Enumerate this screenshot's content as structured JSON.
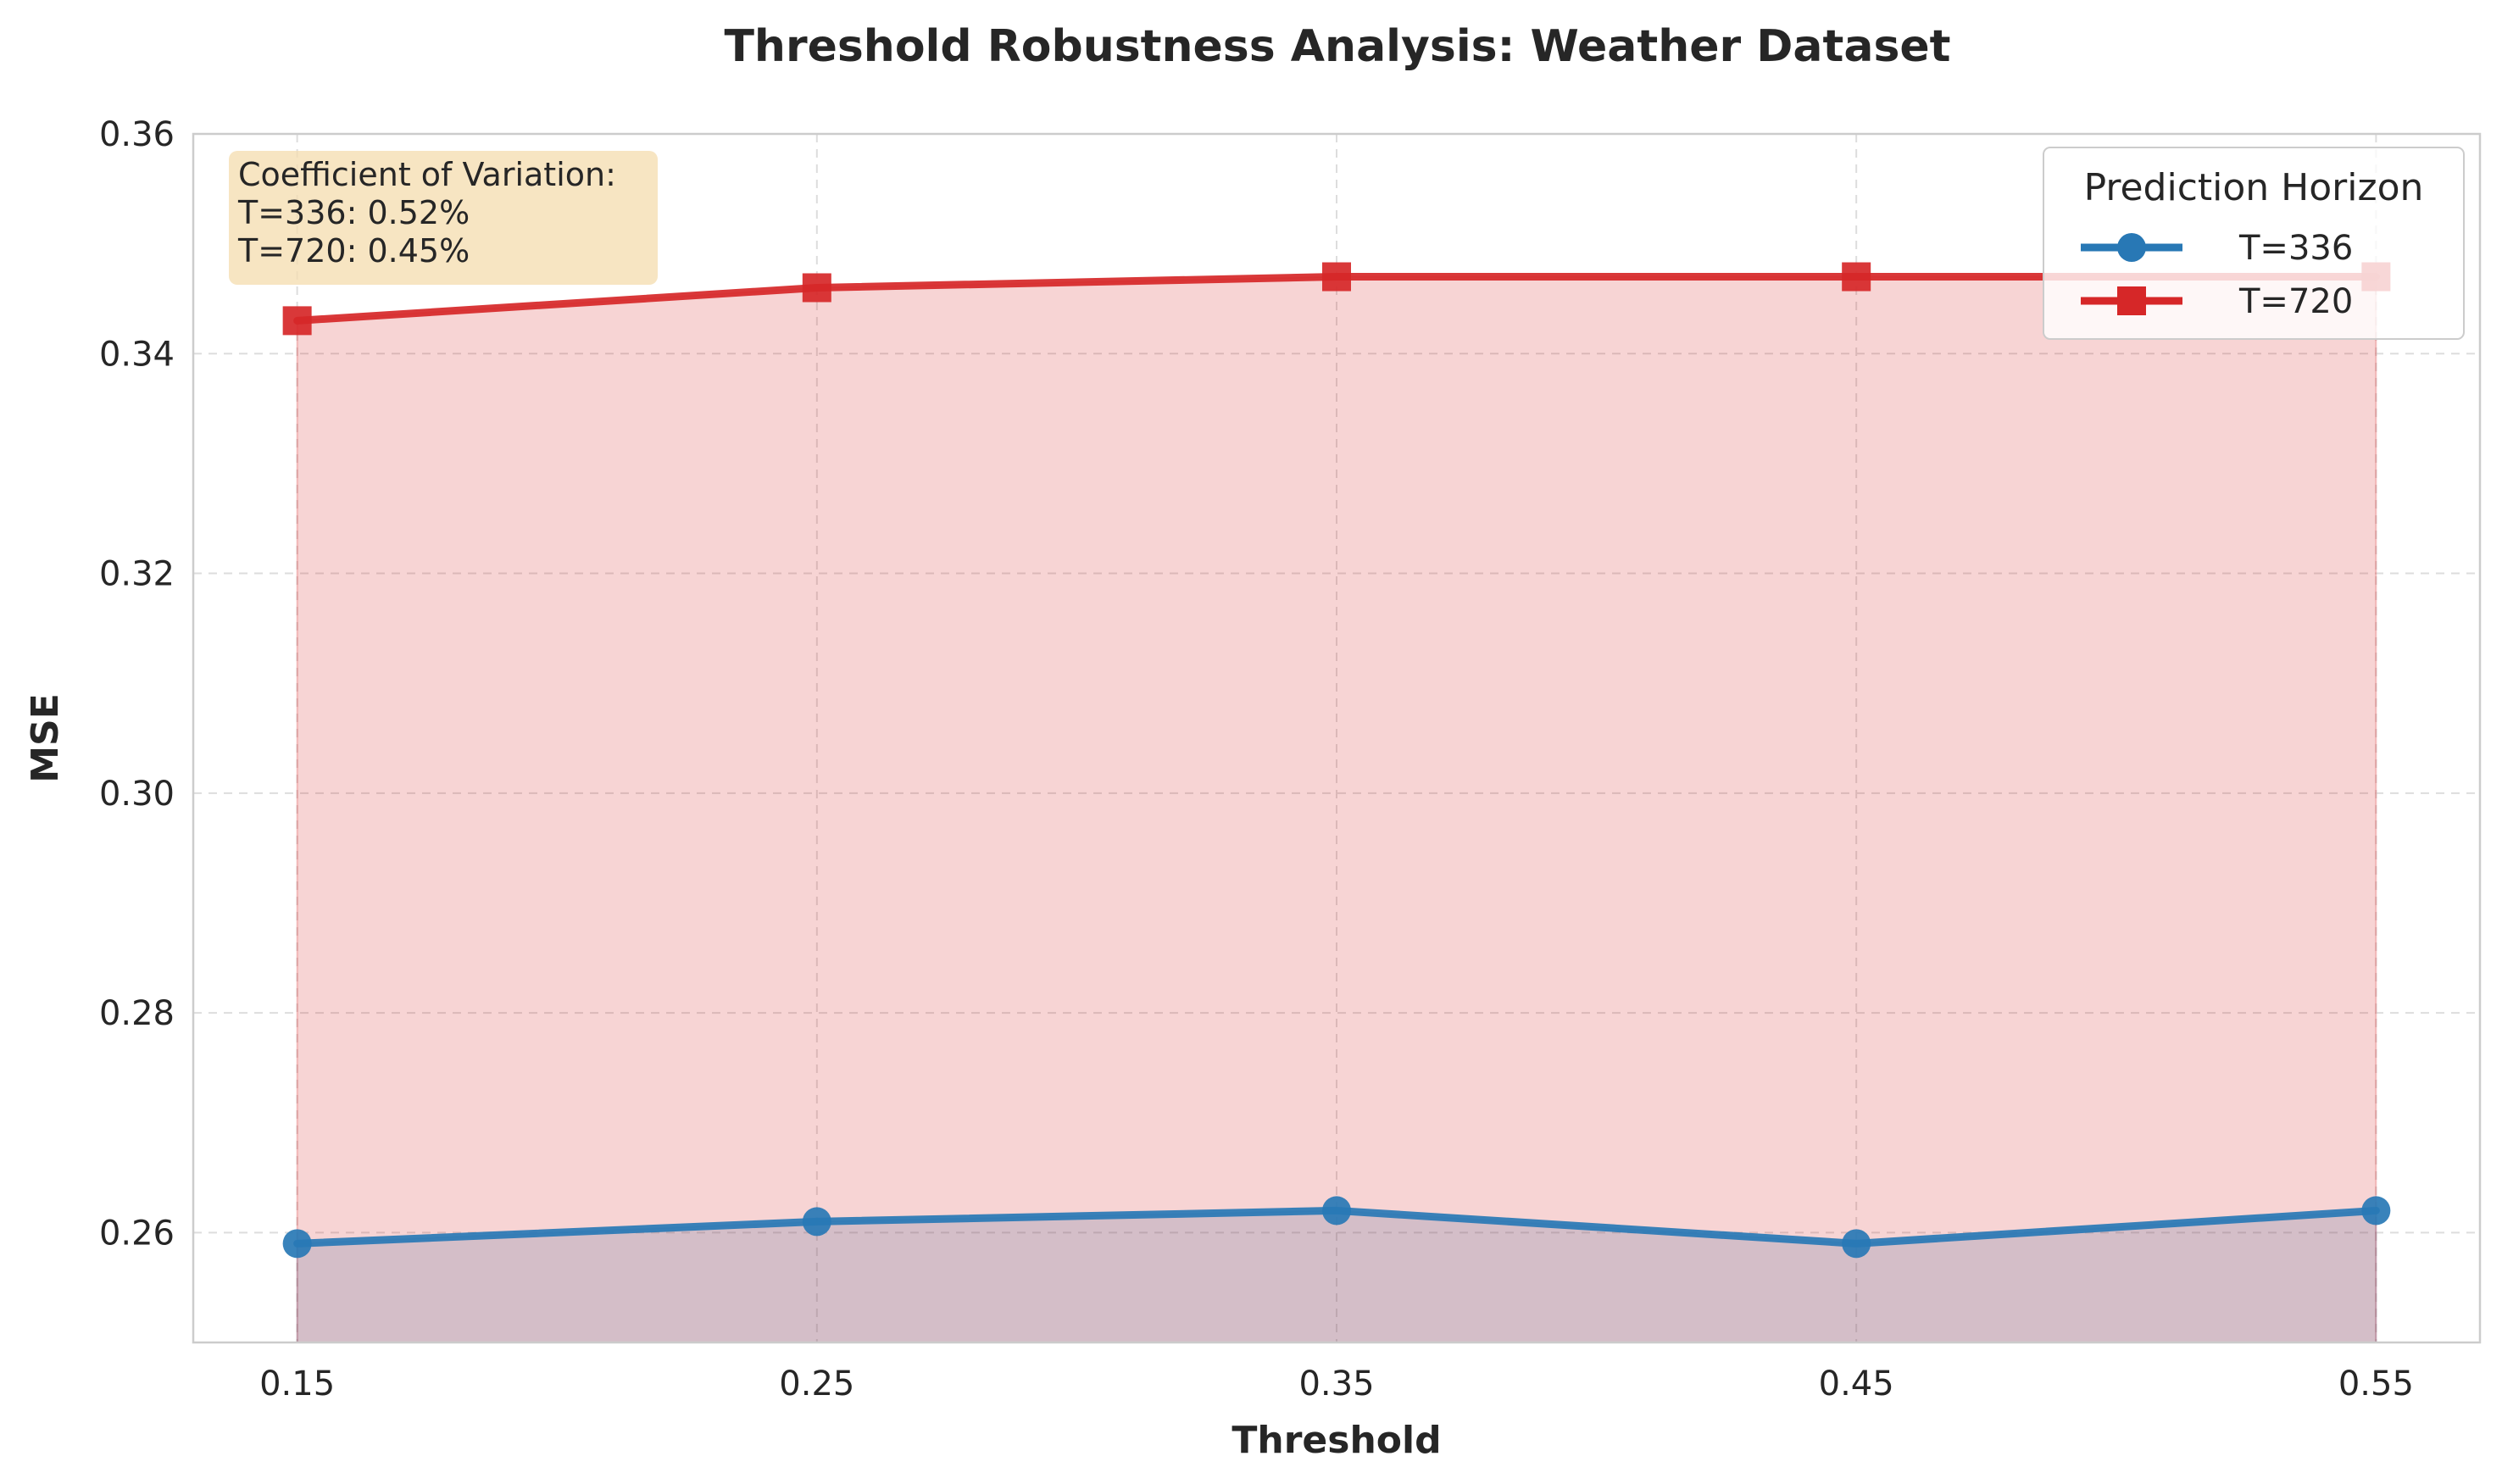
{
  "chart_data": {
    "type": "line",
    "title": "Threshold Robustness Analysis: Weather Dataset",
    "xlabel": "Threshold",
    "ylabel": "MSE",
    "x": [
      0.15,
      0.25,
      0.35,
      0.45,
      0.55
    ],
    "x_tick_labels": [
      "0.15",
      "0.25",
      "0.35",
      "0.45",
      "0.55"
    ],
    "y_tick_values": [
      0.26,
      0.28,
      0.3,
      0.32,
      0.34,
      0.36
    ],
    "y_tick_labels": [
      "0.26",
      "0.28",
      "0.30",
      "0.32",
      "0.34",
      "0.36"
    ],
    "xlim": [
      0.13,
      0.57
    ],
    "ylim": [
      0.25,
      0.36
    ],
    "grid": true,
    "legend_title": "Prediction Horizon",
    "legend_position": "top-right",
    "series": [
      {
        "name": "T=336",
        "marker": "circle",
        "color": "#2878b5",
        "fill": true,
        "values": [
          0.259,
          0.261,
          0.262,
          0.259,
          0.262
        ]
      },
      {
        "name": "T=720",
        "marker": "square",
        "color": "#d62728",
        "fill": true,
        "values": [
          0.343,
          0.346,
          0.347,
          0.347,
          0.347
        ]
      }
    ],
    "annotation": {
      "lines": [
        "Coefficient of Variation:",
        "T=336: 0.52%",
        "T=720: 0.45%"
      ],
      "background": "#f5deb3"
    }
  }
}
